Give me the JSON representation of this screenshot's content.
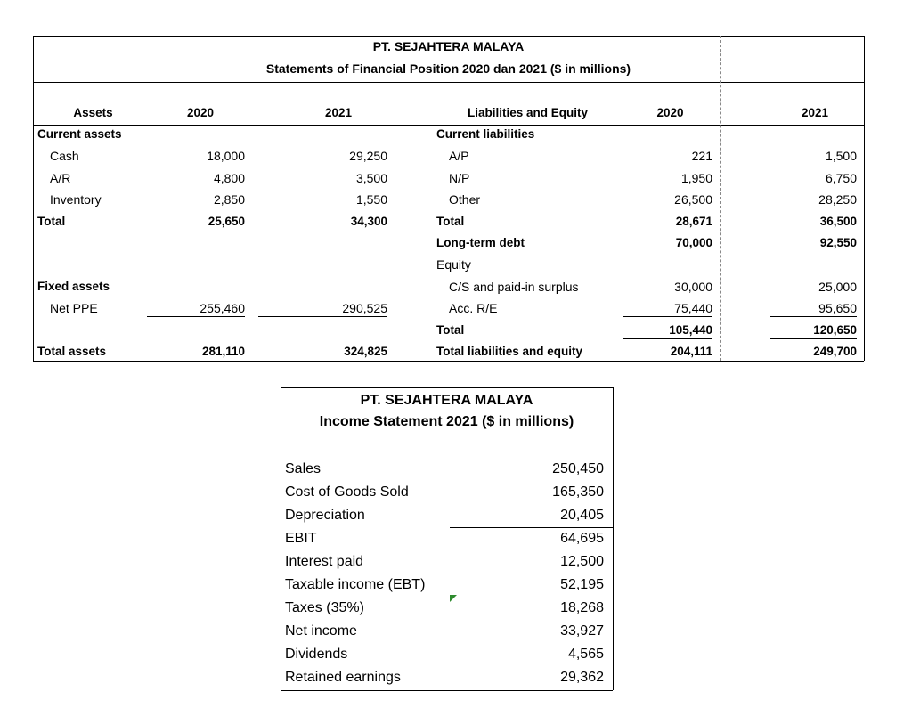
{
  "balance_sheet": {
    "title": "PT. SEJAHTERA MALAYA",
    "subtitle": "Statements of Financial Position 2020 dan 2021 ($ in millions)",
    "header": [
      "Assets",
      "2020",
      "2021",
      "Liabilities and Equity",
      "2020",
      "2021"
    ],
    "rows": [
      [
        "Current assets",
        null,
        null,
        "Current liabilities",
        null,
        null
      ],
      [
        "Cash",
        "18,000",
        "29,250",
        "A/P",
        "221",
        "1,500"
      ],
      [
        "A/R",
        "4,800",
        "3,500",
        "N/P",
        "1,950",
        "6,750"
      ],
      [
        "Inventory",
        "2,850",
        "1,550",
        "Other",
        "26,500",
        "28,250"
      ],
      [
        "Total",
        "25,650",
        "34,300",
        "Total",
        "28,671",
        "36,500"
      ],
      [
        null,
        null,
        null,
        "Long-term debt",
        "70,000",
        "92,550"
      ],
      [
        null,
        null,
        null,
        "Equity",
        null,
        null
      ],
      [
        "Fixed assets",
        null,
        null,
        "C/S and paid-in surplus",
        "30,000",
        "25,000"
      ],
      [
        "Net PPE",
        "255,460",
        "290,525",
        "Acc. R/E",
        "75,440",
        "95,650"
      ],
      [
        null,
        null,
        null,
        "Total",
        "105,440",
        "120,650"
      ],
      [
        "Total assets",
        "281,110",
        "324,825",
        "Total liabilities and equity",
        "204,111",
        "249,700"
      ]
    ]
  },
  "income_statement": {
    "title": "PT. SEJAHTERA MALAYA",
    "subtitle": "Income Statement 2021 ($ in millions)",
    "rows": [
      [
        "Sales",
        "250,450"
      ],
      [
        "Cost of Goods Sold",
        "165,350"
      ],
      [
        "Depreciation",
        "20,405"
      ],
      [
        "EBIT",
        "64,695"
      ],
      [
        "Interest paid",
        "12,500"
      ],
      [
        "Taxable income (EBT)",
        "52,195"
      ],
      [
        "Taxes (35%)",
        "18,268"
      ],
      [
        "Net income",
        "33,927"
      ],
      [
        "Dividends",
        "4,565"
      ],
      [
        "Retained earnings",
        "29,362"
      ]
    ]
  }
}
